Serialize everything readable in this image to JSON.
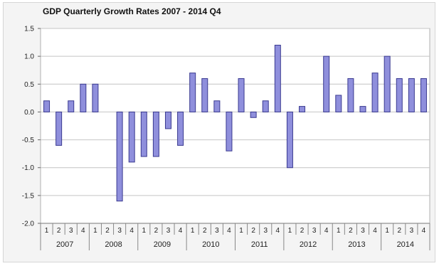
{
  "chart_data": {
    "type": "bar",
    "title": "GDP Quarterly Growth Rates 2007 - 2014 Q4",
    "xlabel": "",
    "ylabel": "",
    "ylim": [
      -2.0,
      1.5
    ],
    "yticks": [
      "1.5",
      "1.0",
      "0.5",
      "0.0",
      "-0.5",
      "-1.0",
      "-1.5",
      "-2.0"
    ],
    "ytick_values": [
      1.5,
      1.0,
      0.5,
      0.0,
      -0.5,
      -1.0,
      -1.5,
      -2.0
    ],
    "grid": true,
    "bar_color": "#8f8fdc",
    "bar_edge_color": "#3a3a90",
    "years": [
      "2007",
      "2008",
      "2009",
      "2010",
      "2011",
      "2012",
      "2013",
      "2014"
    ],
    "quarters": [
      "1",
      "2",
      "3",
      "4"
    ],
    "values": [
      0.2,
      -0.6,
      0.2,
      0.5,
      0.5,
      0.0,
      -1.6,
      -0.9,
      -0.8,
      -0.8,
      -0.3,
      -0.6,
      0.7,
      0.6,
      0.2,
      -0.7,
      0.6,
      -0.1,
      0.2,
      1.2,
      -1.0,
      0.1,
      0.0,
      1.0,
      0.3,
      0.6,
      0.1,
      0.7,
      1.0,
      0.6,
      0.6,
      0.6
    ]
  }
}
